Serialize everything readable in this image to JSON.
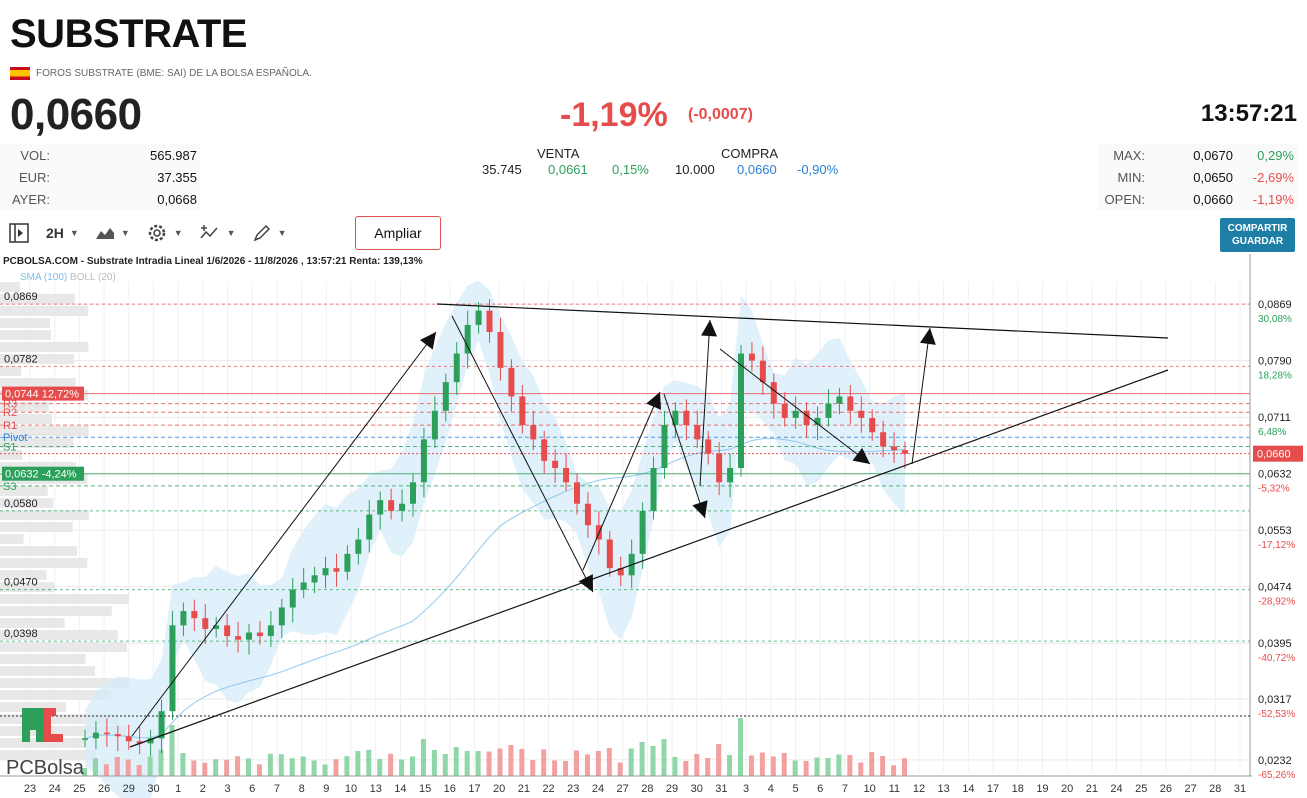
{
  "header": {
    "title": "SUBSTRATE",
    "subtitle": "FOROS SUBSTRATE (BME: SAI) DE LA BOLSA ESPAÑOLA.",
    "price": "0,0660",
    "change_pct": "-1,19%",
    "change_abs": "(-0,0007)",
    "time": "13:57:21"
  },
  "left_stats": [
    {
      "label": "VOL:",
      "value": "565.987"
    },
    {
      "label": "EUR:",
      "value": "37.355"
    },
    {
      "label": "AYER:",
      "value": "0,0668"
    }
  ],
  "order_book": {
    "venta_label": "VENTA",
    "compra_label": "COMPRA",
    "venta_qty": "35.745",
    "venta_price": "0,0661",
    "venta_pct": "0,15%",
    "compra_qty": "10.000",
    "compra_price": "0,0660",
    "compra_pct": "-0,90%"
  },
  "right_stats": [
    {
      "label": "MAX:",
      "value": "0,0670",
      "pct": "0,29%",
      "color": "#2ca05a"
    },
    {
      "label": "MIN:",
      "value": "0,0650",
      "pct": "-2,69%",
      "color": "#e74c4c"
    },
    {
      "label": "OPEN:",
      "value": "0,0660",
      "pct": "-1,19%",
      "color": "#e74c4c"
    }
  ],
  "toolbar": {
    "interval": "2H",
    "ampliar_label": "Ampliar",
    "share_line1": "COMPARTIR",
    "share_line2": "GUARDAR"
  },
  "chart": {
    "title": "PCBOLSA.COM - Substrate Intradia Lineal 1/6/2026 - 11/8/2026 , 13:57:21 Renta: 139,13%",
    "sma_label": "SMA (100)",
    "boll_label": "BOLL (20)",
    "logo_text": "PCBolsa",
    "left_price_labels": [
      "0,0869",
      "0,0782",
      "0,0580",
      "0,0470",
      "0,0398"
    ],
    "level_labels": [
      {
        "text": "0,0744  12,72%",
        "color": "#e74c4c",
        "price": 0.0744
      },
      {
        "text": "R3",
        "color": "#e74c4c",
        "price": 0.073
      },
      {
        "text": "R2",
        "color": "#e74c4c",
        "price": 0.0718
      },
      {
        "text": "R1",
        "color": "#e74c4c",
        "price": 0.07
      },
      {
        "text": "Pivot",
        "color": "#2a7fd4",
        "price": 0.0683
      },
      {
        "text": "S1",
        "color": "#2ca05a",
        "price": 0.067
      },
      {
        "text": "0,0632  -4,24%",
        "color": "#2ca05a",
        "price": 0.0632
      },
      {
        "text": "S3",
        "color": "#2ca05a",
        "price": 0.0615
      }
    ],
    "right_axis": [
      {
        "price": "0,0869",
        "pct": "30,08%",
        "pct_color": "#2ca05a"
      },
      {
        "price": "0,0790",
        "pct": "18,28%",
        "pct_color": "#2ca05a"
      },
      {
        "price": "0,0711",
        "pct": "6,48%",
        "pct_color": "#2ca05a"
      },
      {
        "price": "0,0632",
        "pct": "-5,32%",
        "pct_color": "#e74c4c"
      },
      {
        "price": "0,0553",
        "pct": "-17,12%",
        "pct_color": "#e74c4c"
      },
      {
        "price": "0,0474",
        "pct": "-28,92%",
        "pct_color": "#e74c4c"
      },
      {
        "price": "0,0395",
        "pct": "-40,72%",
        "pct_color": "#e74c4c"
      },
      {
        "price": "0,0317",
        "pct": "-52,53%",
        "pct_color": "#e74c4c"
      },
      {
        "price": "0,0232",
        "pct": "-65,26%",
        "pct_color": "#e74c4c"
      }
    ],
    "current_price_tag": "0,0660",
    "x_labels": [
      "23",
      "24",
      "25",
      "26",
      "29",
      "30",
      "1",
      "2",
      "3",
      "6",
      "7",
      "8",
      "9",
      "10",
      "13",
      "14",
      "15",
      "16",
      "17",
      "20",
      "21",
      "22",
      "23",
      "24",
      "27",
      "28",
      "29",
      "30",
      "31",
      "3",
      "4",
      "5",
      "6",
      "7",
      "10",
      "11",
      "12",
      "13",
      "14",
      "17",
      "18",
      "19",
      "20",
      "21",
      "24",
      "25",
      "26",
      "27",
      "28",
      "31"
    ]
  },
  "chart_data": {
    "type": "candlestick",
    "title": "PCBOLSA.COM - Substrate Intradia Lineal 1/6/2026 - 11/8/2026 , 13:57:21 Renta: 139,13%",
    "ylim": [
      0.0215,
      0.09
    ],
    "approx_close_path": [
      0.0262,
      0.027,
      0.0268,
      0.0265,
      0.0258,
      0.0255,
      0.0262,
      0.03,
      0.042,
      0.044,
      0.043,
      0.0415,
      0.042,
      0.0405,
      0.04,
      0.041,
      0.0405,
      0.042,
      0.0445,
      0.047,
      0.048,
      0.049,
      0.05,
      0.0495,
      0.052,
      0.054,
      0.0575,
      0.0595,
      0.058,
      0.059,
      0.062,
      0.068,
      0.072,
      0.076,
      0.08,
      0.084,
      0.086,
      0.083,
      0.078,
      0.074,
      0.07,
      0.068,
      0.065,
      0.064,
      0.062,
      0.059,
      0.056,
      0.054,
      0.05,
      0.049,
      0.052,
      0.058,
      0.064,
      0.07,
      0.072,
      0.07,
      0.068,
      0.066,
      0.062,
      0.064,
      0.08,
      0.079,
      0.076,
      0.073,
      0.071,
      0.072,
      0.07,
      0.071,
      0.073,
      0.074,
      0.072,
      0.071,
      0.069,
      0.067,
      0.0665,
      0.066
    ]
  }
}
